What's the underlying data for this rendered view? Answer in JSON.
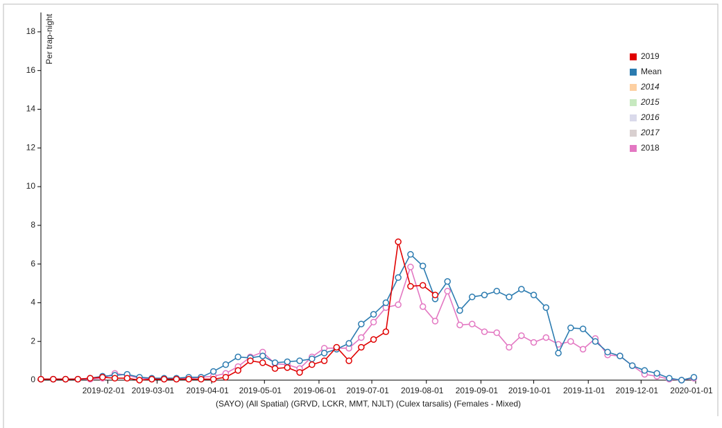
{
  "chart_data": {
    "type": "line",
    "y_label": "Per trap-night",
    "x_label": "(SAYO) (All Spatial) (GRVD, LCKR, MMT, NJLT) (Culex tarsalis) (Females - Mixed)",
    "x": [
      "2018-12-25",
      "2019-01-01",
      "2019-01-08",
      "2019-01-15",
      "2019-01-22",
      "2019-01-29",
      "2019-02-05",
      "2019-02-12",
      "2019-02-19",
      "2019-02-26",
      "2019-03-05",
      "2019-03-12",
      "2019-03-19",
      "2019-03-26",
      "2019-04-02",
      "2019-04-09",
      "2019-04-16",
      "2019-04-23",
      "2019-04-30",
      "2019-05-07",
      "2019-05-14",
      "2019-05-21",
      "2019-05-28",
      "2019-06-04",
      "2019-06-11",
      "2019-06-18",
      "2019-06-25",
      "2019-07-02",
      "2019-07-09",
      "2019-07-16",
      "2019-07-23",
      "2019-07-30",
      "2019-08-06",
      "2019-08-13",
      "2019-08-20",
      "2019-08-27",
      "2019-09-03",
      "2019-09-10",
      "2019-09-17",
      "2019-09-24",
      "2019-10-01",
      "2019-10-08",
      "2019-10-15",
      "2019-10-22",
      "2019-10-29",
      "2019-11-05",
      "2019-11-12",
      "2019-11-19",
      "2019-11-26",
      "2019-12-03",
      "2019-12-10",
      "2019-12-17",
      "2019-12-24",
      "2019-12-31"
    ],
    "xlim": [
      "2018-12-25",
      "2020-01-01"
    ],
    "xticks": [
      "2019-02-01",
      "2019-03-01",
      "2019-04-01",
      "2019-05-01",
      "2019-06-01",
      "2019-07-01",
      "2019-08-01",
      "2019-09-01",
      "2019-10-01",
      "2019-11-01",
      "2019-12-01",
      "2020-01-01"
    ],
    "ylim": [
      0,
      19
    ],
    "yticks": [
      0,
      2,
      4,
      6,
      8,
      10,
      12,
      14,
      16,
      18
    ],
    "series": [
      {
        "name": "2019",
        "color": "#e00000",
        "visible": true,
        "values": [
          0.05,
          0.05,
          0.05,
          0.05,
          0.1,
          0.15,
          0.1,
          0.1,
          0,
          0.05,
          0.05,
          0.05,
          0.05,
          0.05,
          0.05,
          0.15,
          0.5,
          1.0,
          0.9,
          0.6,
          0.65,
          0.4,
          0.8,
          1.0,
          1.7,
          1.0,
          1.7,
          2.1,
          2.5,
          7.15,
          4.85,
          4.9,
          4.4,
          null,
          null,
          null,
          null,
          null,
          null,
          null,
          null,
          null,
          null,
          null,
          null,
          null,
          null,
          null,
          null,
          null,
          null,
          null,
          null,
          null
        ]
      },
      {
        "name": "Mean",
        "color": "#2b7bb0",
        "visible": true,
        "values": [
          0.05,
          0.05,
          0.05,
          0.05,
          0.1,
          0.2,
          0.25,
          0.3,
          0.15,
          0.1,
          0.1,
          0.1,
          0.15,
          0.15,
          0.45,
          0.8,
          1.2,
          1.15,
          1.25,
          0.9,
          0.95,
          1.0,
          1.1,
          1.4,
          1.6,
          1.9,
          2.9,
          3.4,
          4.0,
          5.3,
          6.5,
          5.9,
          4.2,
          5.1,
          3.6,
          4.3,
          4.4,
          4.6,
          4.3,
          4.7,
          4.4,
          3.75,
          1.4,
          2.7,
          2.65,
          2.0,
          1.45,
          1.25,
          0.75,
          0.5,
          0.35,
          0.1,
          0.0,
          0.15
        ]
      },
      {
        "name": "2014",
        "color": "#fdd0a2",
        "visible": false,
        "values": [
          null,
          null,
          null,
          null,
          null,
          null,
          null,
          null,
          null,
          null,
          null,
          null,
          null,
          null,
          null,
          null,
          null,
          null,
          null,
          null,
          null,
          null,
          null,
          null,
          null,
          null,
          null,
          null,
          null,
          null,
          null,
          null,
          null,
          null,
          null,
          null,
          null,
          null,
          null,
          null,
          null,
          null,
          null,
          null,
          null,
          null,
          null,
          null,
          null,
          null,
          null,
          null,
          null,
          null
        ]
      },
      {
        "name": "2015",
        "color": "#c7e9c0",
        "visible": false,
        "values": [
          null,
          null,
          null,
          null,
          null,
          null,
          null,
          null,
          null,
          null,
          null,
          null,
          null,
          null,
          null,
          null,
          null,
          null,
          null,
          null,
          null,
          null,
          null,
          null,
          null,
          null,
          null,
          null,
          null,
          null,
          null,
          null,
          null,
          null,
          null,
          null,
          null,
          null,
          null,
          null,
          null,
          null,
          null,
          null,
          null,
          null,
          null,
          null,
          null,
          null,
          null,
          null,
          null,
          null
        ]
      },
      {
        "name": "2016",
        "color": "#dadaeb",
        "visible": false,
        "values": [
          null,
          null,
          null,
          null,
          null,
          null,
          null,
          null,
          null,
          null,
          null,
          null,
          null,
          null,
          null,
          null,
          null,
          null,
          null,
          null,
          null,
          null,
          null,
          null,
          null,
          null,
          null,
          null,
          null,
          null,
          null,
          null,
          null,
          null,
          null,
          null,
          null,
          null,
          null,
          null,
          null,
          null,
          null,
          null,
          null,
          null,
          null,
          null,
          null,
          null,
          null,
          null,
          null,
          null
        ]
      },
      {
        "name": "2017",
        "color": "#d9d0d0",
        "visible": false,
        "values": [
          null,
          null,
          null,
          null,
          null,
          null,
          null,
          null,
          null,
          null,
          null,
          null,
          null,
          null,
          null,
          null,
          null,
          null,
          null,
          null,
          null,
          null,
          null,
          null,
          null,
          null,
          null,
          null,
          null,
          null,
          null,
          null,
          null,
          null,
          null,
          null,
          null,
          null,
          null,
          null,
          null,
          null,
          null,
          null,
          null,
          null,
          null,
          null,
          null,
          null,
          null,
          null,
          null,
          null
        ]
      },
      {
        "name": "2018",
        "color": "#e377c2",
        "visible": true,
        "values": [
          0.05,
          0.05,
          0.05,
          0.05,
          0.05,
          0.1,
          0.35,
          0.25,
          0.1,
          0.05,
          0.05,
          0.05,
          0.1,
          0.15,
          0.2,
          0.35,
          0.7,
          1.2,
          1.45,
          0.85,
          0.8,
          0.6,
          1.2,
          1.65,
          1.65,
          1.65,
          2.2,
          3.0,
          3.75,
          3.9,
          5.85,
          3.8,
          3.05,
          4.6,
          2.85,
          2.9,
          2.5,
          2.45,
          1.7,
          2.3,
          1.95,
          2.2,
          1.85,
          2.0,
          1.6,
          2.15,
          1.3,
          1.25,
          0.75,
          0.3,
          0.2,
          0.05,
          0.0,
          0.1
        ]
      }
    ]
  }
}
